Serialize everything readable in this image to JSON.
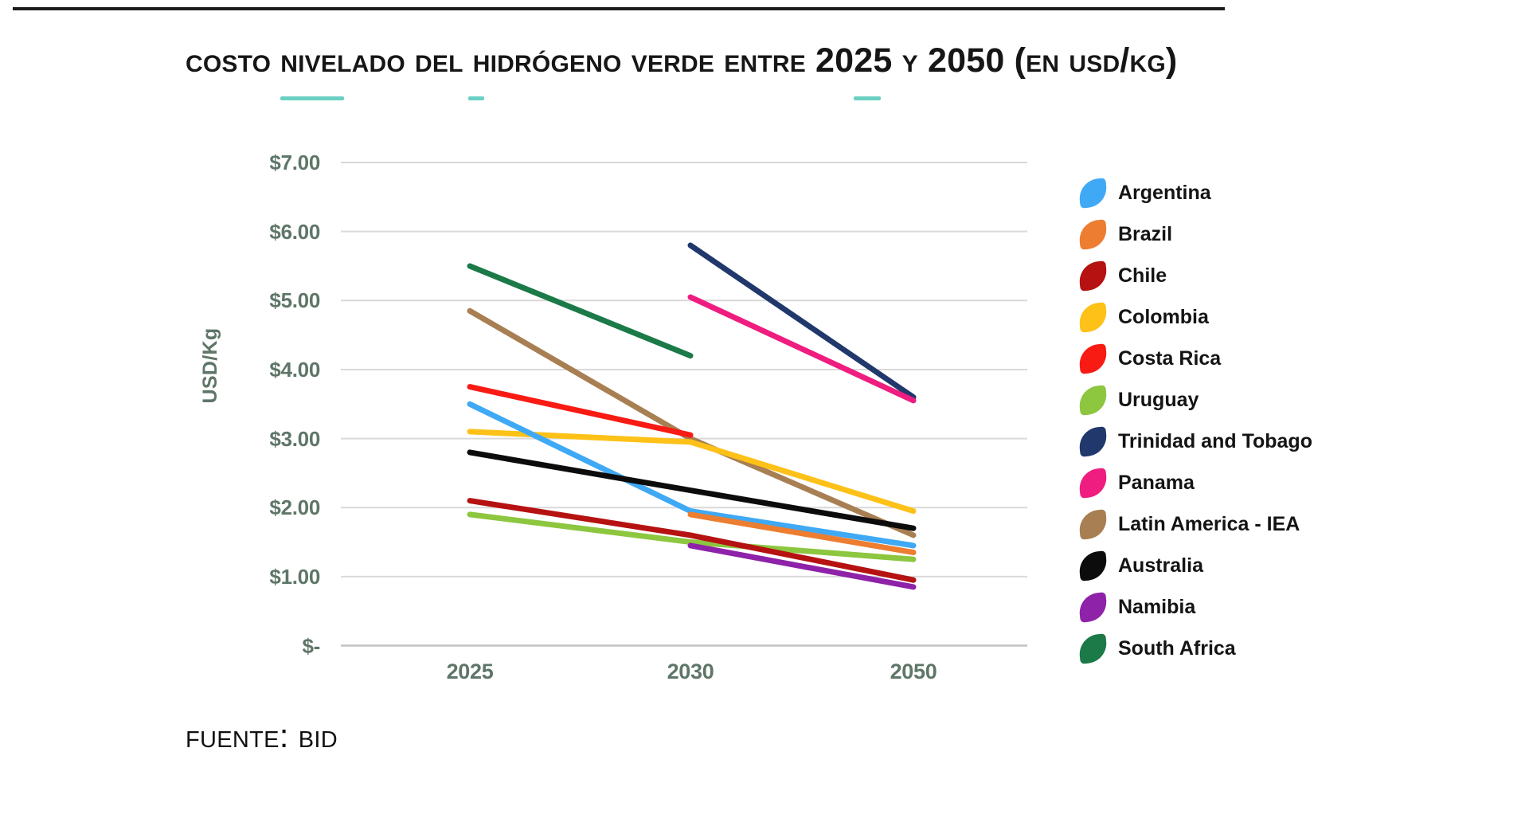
{
  "title": "Costo nivelado del hidrógeno verde entre 2025 y 2050 (en USD/Kg)",
  "source": "Fuente: BID",
  "chart_data": {
    "type": "line",
    "title": "Costo nivelado del hidrógeno verde entre 2025 y 2050 (en USD/Kg)",
    "source": "Fuente: BID",
    "ylabel": "USD/Kg",
    "xlabel": "",
    "categories": [
      "2025",
      "2030",
      "2050"
    ],
    "ylim": [
      0,
      7
    ],
    "grid": true,
    "legend_position": "right",
    "y_ticks": [
      {
        "label": "$7.00",
        "value": 7
      },
      {
        "label": "$6.00",
        "value": 6
      },
      {
        "label": "$5.00",
        "value": 5
      },
      {
        "label": "$4.00",
        "value": 4
      },
      {
        "label": "$3.00",
        "value": 3
      },
      {
        "label": "$2.00",
        "value": 2
      },
      {
        "label": "$1.00",
        "value": 1
      },
      {
        "label": "$-",
        "value": 0
      }
    ],
    "series": [
      {
        "name": "Argentina",
        "color": "#3fa9f5",
        "values": [
          3.5,
          1.95,
          1.45
        ]
      },
      {
        "name": "Brazil",
        "color": "#ed7d31",
        "values": [
          null,
          1.9,
          1.35
        ]
      },
      {
        "name": "Chile",
        "color": "#b51211",
        "values": [
          2.1,
          1.6,
          0.95
        ]
      },
      {
        "name": "Colombia",
        "color": "#fdc117",
        "values": [
          3.1,
          2.95,
          1.95
        ]
      },
      {
        "name": "Costa Rica",
        "color": "#f81b14",
        "values": [
          3.75,
          3.05,
          null
        ]
      },
      {
        "name": "Uruguay",
        "color": "#8dc63f",
        "values": [
          1.9,
          1.5,
          1.25
        ]
      },
      {
        "name": "Trinidad and Tobago",
        "color": "#20386b",
        "values": [
          null,
          5.8,
          3.6
        ]
      },
      {
        "name": "Panama",
        "color": "#ee1d7f",
        "values": [
          null,
          5.05,
          3.55
        ]
      },
      {
        "name": "Latin America - IEA",
        "color": "#a87f52",
        "values": [
          4.85,
          3.0,
          1.6
        ]
      },
      {
        "name": "Australia",
        "color": "#0c0c0c",
        "values": [
          2.8,
          2.25,
          1.7
        ]
      },
      {
        "name": "Namibia",
        "color": "#8e22a8",
        "values": [
          null,
          1.45,
          0.85
        ]
      },
      {
        "name": "South Africa",
        "color": "#1b7a48",
        "values": [
          5.5,
          4.2,
          null
        ]
      }
    ]
  }
}
